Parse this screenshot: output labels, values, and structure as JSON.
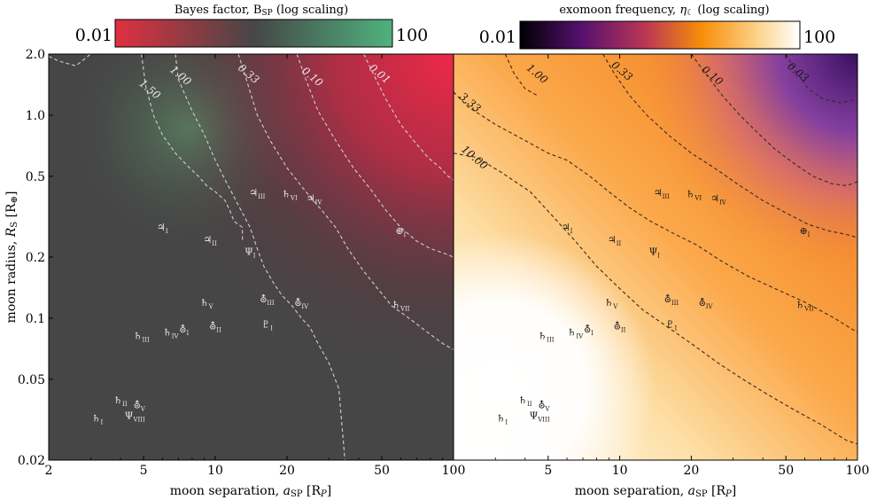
{
  "chart_data": [
    {
      "type": "heatmap",
      "colorbar": {
        "label": "Bayes factor, B",
        "label_sub": "SP",
        "label_suffix": " (log scaling)",
        "min_label": "0.01",
        "max_label": "100",
        "colors": [
          "#e03040",
          "#464646",
          "#4fb27e"
        ]
      },
      "xlabel": "moon separation, ",
      "xlabel_var": "a",
      "xlabel_sub": "SP",
      "xlabel_unit": " [R",
      "xlabel_unit_sub": "P",
      "xlabel_unit_end": "]",
      "ylabel": "moon radius, ",
      "ylabel_var": "R",
      "ylabel_sub": "S",
      "ylabel_unit": " [R",
      "ylabel_unit_sub": "⊕",
      "ylabel_unit_end": "]",
      "xlim": [
        2,
        100
      ],
      "ylim": [
        0.02,
        2.0
      ],
      "xscale": "log",
      "yscale": "log",
      "xticks": [
        2,
        5,
        10,
        20,
        50,
        100
      ],
      "xtick_labels": [
        "2",
        "5",
        "10",
        "20",
        "50",
        "100"
      ],
      "yticks": [
        0.02,
        0.05,
        0.1,
        0.2,
        0.5,
        1.0,
        2.0
      ],
      "ytick_labels": [
        "0.02",
        "0.05",
        "0.1",
        "0.2",
        "0.5",
        "1.0",
        "2.0"
      ],
      "contour_labels": [
        {
          "text": "1.50",
          "x": 5.2,
          "y": 1.3
        },
        {
          "text": "1.00",
          "x": 7.0,
          "y": 1.52
        },
        {
          "text": "0.33",
          "x": 13.5,
          "y": 1.55
        },
        {
          "text": "0.10",
          "x": 25.0,
          "y": 1.5
        },
        {
          "text": "0.01",
          "x": 48.0,
          "y": 1.55
        }
      ]
    },
    {
      "type": "heatmap",
      "colorbar": {
        "label": "exomoon frequency, ",
        "label_var": "η",
        "label_sub": "☾",
        "label_suffix": " (log scaling)",
        "min_label": "0.01",
        "max_label": "100",
        "colors": [
          "#000004",
          "#56106e",
          "#bb3754",
          "#f98e09",
          "#fcffa4",
          "#ffffff"
        ]
      },
      "xlabel": "moon separation, ",
      "xlabel_var": "a",
      "xlabel_sub": "SP",
      "xlabel_unit": " [R",
      "xlabel_unit_sub": "P",
      "xlabel_unit_end": "]",
      "xlim": [
        2,
        100
      ],
      "ylim": [
        0.02,
        2.0
      ],
      "xscale": "log",
      "yscale": "log",
      "xticks": [
        2,
        5,
        10,
        20,
        50,
        100
      ],
      "xtick_labels": [
        "",
        "5",
        "10",
        "20",
        "50",
        "100"
      ],
      "contour_labels": [
        {
          "text": "1.00",
          "x": 4.4,
          "y": 1.55
        },
        {
          "text": "0.33",
          "x": 10.0,
          "y": 1.6
        },
        {
          "text": "0.10",
          "x": 24.0,
          "y": 1.52
        },
        {
          "text": "0.03",
          "x": 55.0,
          "y": 1.58
        },
        {
          "text": "3.33",
          "x": 2.3,
          "y": 1.12
        },
        {
          "text": "10.00",
          "x": 2.4,
          "y": 0.6
        }
      ]
    }
  ],
  "moons": [
    {
      "sym": "♄",
      "sub": "I",
      "x": 3.2,
      "y": 0.031
    },
    {
      "sym": "♄",
      "sub": "II",
      "x": 4.0,
      "y": 0.038
    },
    {
      "sym": "⛢",
      "sub": "V",
      "x": 4.8,
      "y": 0.036
    },
    {
      "sym": "Ψ",
      "sub": "VIII",
      "x": 4.6,
      "y": 0.032
    },
    {
      "sym": "♄",
      "sub": "III",
      "x": 4.9,
      "y": 0.079
    },
    {
      "sym": "♄",
      "sub": "IV",
      "x": 6.5,
      "y": 0.082
    },
    {
      "sym": "⛢",
      "sub": "I",
      "x": 7.4,
      "y": 0.085
    },
    {
      "sym": "⛢",
      "sub": "II",
      "x": 10.0,
      "y": 0.088
    },
    {
      "sym": "♄",
      "sub": "V",
      "x": 9.2,
      "y": 0.115
    },
    {
      "sym": "♇",
      "sub": "I",
      "x": 16.5,
      "y": 0.09
    },
    {
      "sym": "⛢",
      "sub": "III",
      "x": 16.5,
      "y": 0.12
    },
    {
      "sym": "⛢",
      "sub": "IV",
      "x": 23.0,
      "y": 0.115
    },
    {
      "sym": "♃",
      "sub": "I",
      "x": 6.0,
      "y": 0.27
    },
    {
      "sym": "♃",
      "sub": "II",
      "x": 9.5,
      "y": 0.235
    },
    {
      "sym": "Ψ",
      "sub": "I",
      "x": 14.0,
      "y": 0.205
    },
    {
      "sym": "♃",
      "sub": "III",
      "x": 15.0,
      "y": 0.4
    },
    {
      "sym": "♄",
      "sub": "VI",
      "x": 20.5,
      "y": 0.395
    },
    {
      "sym": "♃",
      "sub": "IV",
      "x": 26.0,
      "y": 0.375
    },
    {
      "sym": "⊕",
      "sub": "I",
      "x": 60.0,
      "y": 0.26
    },
    {
      "sym": "♄",
      "sub": "VII",
      "x": 60.0,
      "y": 0.112
    }
  ],
  "left_contours": [
    {
      "level": "1.50",
      "x": [
        4.9,
        5.1,
        5.5,
        6.0,
        6.8,
        7.8,
        8.5,
        9.2,
        10.0,
        11.0,
        11.5,
        12.0,
        13.0,
        13.0
      ],
      "y": [
        2.0,
        1.4,
        1.0,
        0.8,
        0.65,
        0.55,
        0.5,
        0.45,
        0.42,
        0.38,
        0.34,
        0.3,
        0.28,
        0.24
      ]
    },
    {
      "level": "1.00",
      "x": [
        6.8,
        7.0,
        8.0,
        9.0,
        10.0,
        11.0,
        12.5,
        14.0,
        15.0,
        16.0,
        17.5,
        19.0,
        21.0,
        23.0,
        25.0,
        27.0,
        30.0,
        33.0,
        35.0
      ],
      "y": [
        2.0,
        1.5,
        1.05,
        0.8,
        0.6,
        0.48,
        0.36,
        0.28,
        0.22,
        0.18,
        0.15,
        0.13,
        0.115,
        0.1,
        0.09,
        0.075,
        0.06,
        0.045,
        0.02
      ]
    },
    {
      "level": "0.33",
      "x": [
        12.5,
        13.5,
        15.0,
        17.0,
        20.0,
        24.0,
        28.0,
        32.0,
        36.0,
        42.0,
        48.0,
        55.0,
        65.0,
        78.0,
        90.0,
        100.0
      ],
      "y": [
        2.0,
        1.5,
        1.0,
        0.75,
        0.55,
        0.42,
        0.34,
        0.28,
        0.22,
        0.17,
        0.14,
        0.115,
        0.1,
        0.085,
        0.075,
        0.07
      ]
    },
    {
      "level": "0.10",
      "x": [
        22.0,
        24.0,
        27.0,
        32.0,
        38.0,
        45.0,
        52.0,
        60.0,
        70.0,
        80.0,
        90.0,
        100.0
      ],
      "y": [
        2.0,
        1.5,
        1.05,
        0.75,
        0.55,
        0.43,
        0.34,
        0.28,
        0.24,
        0.22,
        0.21,
        0.2
      ]
    },
    {
      "level": "0.01",
      "x": [
        42.0,
        46.0,
        52.0,
        60.0,
        68.0,
        78.0,
        88.0,
        95.0,
        100.0
      ],
      "y": [
        2.0,
        1.6,
        1.2,
        0.9,
        0.75,
        0.62,
        0.55,
        0.5,
        0.48
      ]
    },
    {
      "level": "1.00b",
      "x": [
        2.0,
        2.2,
        2.6,
        3.0
      ],
      "y": [
        1.95,
        1.85,
        1.75,
        2.0
      ]
    }
  ],
  "right_contours": [
    {
      "level": "1.00",
      "x": [
        3.3,
        3.6,
        4.0,
        4.5
      ],
      "y": [
        2.0,
        1.6,
        1.35,
        1.25
      ]
    },
    {
      "level": "3.33",
      "x": [
        2.0,
        2.3,
        3.0,
        4.0,
        5.0,
        6.0,
        7.5,
        9.0,
        11.0,
        13.5,
        17.0,
        21.0,
        27.0,
        35.0,
        45.0,
        60.0,
        80.0,
        100.0
      ],
      "y": [
        1.3,
        1.1,
        0.9,
        0.75,
        0.65,
        0.6,
        0.5,
        0.42,
        0.35,
        0.3,
        0.26,
        0.23,
        0.19,
        0.16,
        0.14,
        0.12,
        0.1,
        0.085
      ]
    },
    {
      "level": "10.00",
      "x": [
        2.0,
        2.5,
        3.2,
        4.2,
        5.2,
        6.5,
        8.0,
        10.0,
        12.5,
        16.0,
        20.0,
        26.0,
        33.0,
        42.0,
        55.0,
        70.0,
        90.0,
        100.0
      ],
      "y": [
        0.65,
        0.62,
        0.52,
        0.42,
        0.32,
        0.24,
        0.18,
        0.14,
        0.11,
        0.09,
        0.075,
        0.06,
        0.05,
        0.042,
        0.035,
        0.03,
        0.025,
        0.024
      ]
    },
    {
      "level": "0.33",
      "x": [
        8.5,
        9.5,
        11.0,
        13.0,
        16.0,
        20.0,
        25.0,
        32.0,
        40.0,
        50.0,
        62.0,
        75.0,
        88.0,
        100.0
      ],
      "y": [
        2.0,
        1.6,
        1.25,
        1.0,
        0.8,
        0.65,
        0.55,
        0.45,
        0.38,
        0.33,
        0.29,
        0.27,
        0.26,
        0.25
      ]
    },
    {
      "level": "0.10",
      "x": [
        20.0,
        23.0,
        27.0,
        32.0,
        38.0,
        45.0,
        55.0,
        65.0,
        78.0,
        90.0,
        100.0
      ],
      "y": [
        2.0,
        1.6,
        1.25,
        1.0,
        0.82,
        0.68,
        0.57,
        0.5,
        0.46,
        0.45,
        0.47
      ]
    },
    {
      "level": "0.03",
      "x": [
        50.0,
        55.0,
        62.0,
        72.0,
        85.0,
        100.0
      ],
      "y": [
        2.0,
        1.65,
        1.35,
        1.2,
        1.15,
        1.2
      ]
    }
  ]
}
